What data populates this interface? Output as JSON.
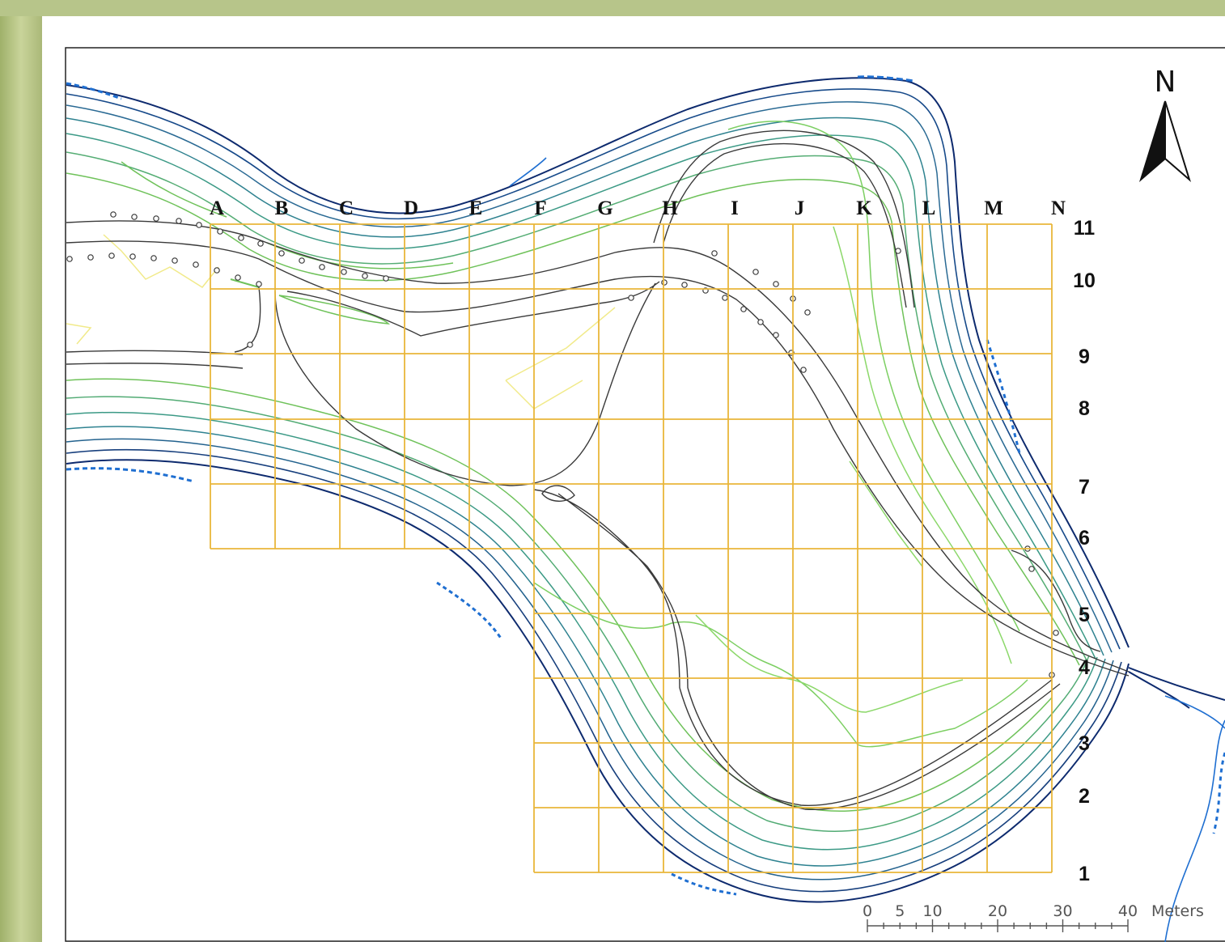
{
  "map": {
    "grid_columns": [
      "A",
      "B",
      "C",
      "D",
      "E",
      "F",
      "G",
      "H",
      "I",
      "J",
      "K",
      "L",
      "M",
      "N"
    ],
    "grid_rows": [
      "11",
      "10",
      "9",
      "8",
      "7",
      "6",
      "5",
      "4",
      "3",
      "2",
      "1"
    ],
    "north_label": "N",
    "scale_bar": {
      "ticks": [
        "0",
        "5",
        "10",
        "20",
        "30",
        "40"
      ],
      "unit": "Meters"
    },
    "colors": {
      "grid": "#e9b63a",
      "contour_dark": "#0d2a6e",
      "contour_mid": "#2a7a8c",
      "contour_light": "#6fc25a",
      "road": "#3a3a3a",
      "stream": "#1f6fd1",
      "aerial_backdrop": "#b9c98a"
    }
  }
}
